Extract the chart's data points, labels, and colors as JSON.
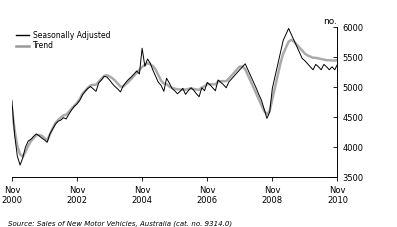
{
  "ylabel_right": "no.",
  "source_text": "Source: Sales of New Motor Vehicles, Australia (cat. no. 9314.0)",
  "legend_entries": [
    "Seasonally Adjusted",
    "Trend"
  ],
  "legend_colors": [
    "#000000",
    "#999999"
  ],
  "legend_linewidths": [
    1.0,
    1.8
  ],
  "ylim": [
    3500,
    6000
  ],
  "yticks": [
    3500,
    4000,
    4500,
    5000,
    5500,
    6000
  ],
  "xtick_labels": [
    "Nov\n2000",
    "Nov\n2002",
    "Nov\n2004",
    "Nov\n2006",
    "Nov\n2008",
    "Nov\n2010"
  ],
  "xtick_positions": [
    0,
    24,
    48,
    72,
    96,
    120
  ],
  "background_color": "#ffffff",
  "sa_color": "#000000",
  "trend_color": "#aaaaaa",
  "sa_linewidth": 0.7,
  "trend_linewidth": 1.8,
  "n_months": 121,
  "seasonally_adjusted": [
    4780,
    4200,
    3850,
    3700,
    3820,
    4000,
    4100,
    4130,
    4180,
    4220,
    4190,
    4150,
    4120,
    4080,
    4220,
    4300,
    4380,
    4430,
    4450,
    4490,
    4470,
    4550,
    4620,
    4680,
    4720,
    4780,
    4870,
    4930,
    4980,
    5010,
    4970,
    4930,
    5070,
    5120,
    5180,
    5170,
    5120,
    5060,
    5010,
    4970,
    4920,
    5020,
    5080,
    5130,
    5170,
    5220,
    5270,
    5220,
    5650,
    5350,
    5470,
    5400,
    5280,
    5180,
    5080,
    5030,
    4930,
    5150,
    5070,
    4980,
    4940,
    4890,
    4930,
    4980,
    4880,
    4940,
    4990,
    4950,
    4890,
    4840,
    4990,
    4940,
    5080,
    5040,
    4990,
    4940,
    5120,
    5080,
    5040,
    4990,
    5090,
    5140,
    5190,
    5240,
    5290,
    5340,
    5390,
    5290,
    5190,
    5090,
    4990,
    4880,
    4780,
    4630,
    4480,
    4580,
    4980,
    5180,
    5380,
    5580,
    5780,
    5880,
    5980,
    5880,
    5780,
    5680,
    5580,
    5480,
    5440,
    5390,
    5340,
    5290,
    5380,
    5340,
    5290,
    5380,
    5340,
    5290,
    5340,
    5290,
    5380
  ],
  "trend": [
    4650,
    4280,
    4020,
    3880,
    3840,
    3920,
    4020,
    4100,
    4150,
    4200,
    4200,
    4190,
    4150,
    4110,
    4210,
    4310,
    4400,
    4450,
    4490,
    4530,
    4540,
    4590,
    4640,
    4690,
    4740,
    4800,
    4890,
    4940,
    4990,
    5030,
    5040,
    5040,
    5090,
    5140,
    5190,
    5200,
    5180,
    5150,
    5110,
    5060,
    5010,
    5010,
    5050,
    5090,
    5140,
    5190,
    5240,
    5290,
    5340,
    5370,
    5400,
    5380,
    5350,
    5290,
    5200,
    5110,
    5060,
    5050,
    5010,
    4990,
    4975,
    4965,
    4960,
    4960,
    4960,
    4970,
    4980,
    4970,
    4960,
    4955,
    4995,
    5015,
    5050,
    5050,
    5050,
    5045,
    5095,
    5100,
    5100,
    5100,
    5145,
    5195,
    5245,
    5295,
    5345,
    5345,
    5300,
    5200,
    5100,
    5000,
    4900,
    4800,
    4700,
    4600,
    4550,
    4600,
    4800,
    5000,
    5200,
    5400,
    5560,
    5660,
    5760,
    5790,
    5760,
    5710,
    5660,
    5610,
    5560,
    5530,
    5510,
    5490,
    5490,
    5480,
    5470,
    5460,
    5450,
    5450,
    5445,
    5445,
    5450
  ]
}
